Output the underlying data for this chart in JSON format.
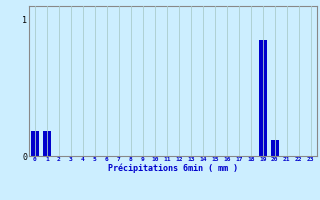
{
  "hours": [
    0,
    1,
    2,
    3,
    4,
    5,
    6,
    7,
    8,
    9,
    10,
    11,
    12,
    13,
    14,
    15,
    16,
    17,
    18,
    19,
    20,
    21,
    22,
    23
  ],
  "values": [
    0.18,
    0.18,
    0.0,
    0.0,
    0.0,
    0.0,
    0.0,
    0.0,
    0.0,
    0.0,
    0.0,
    0.0,
    0.0,
    0.0,
    0.0,
    0.0,
    0.0,
    0.0,
    0.0,
    0.85,
    0.12,
    0.0,
    0.0,
    0.0
  ],
  "bar_color": "#0000cc",
  "bg_color": "#cceeff",
  "grid_color": "#aacccc",
  "axis_color": "#888888",
  "text_color": "#0000cc",
  "xlabel": "Précipitations 6min ( mm )",
  "ytick_labels": [
    "0",
    "1"
  ],
  "ytick_values": [
    0,
    1
  ],
  "ylim": [
    0,
    1.1
  ],
  "xlim": [
    -0.5,
    23.5
  ],
  "bar_width": 0.7,
  "figsize": [
    3.2,
    2.0
  ],
  "dpi": 100
}
